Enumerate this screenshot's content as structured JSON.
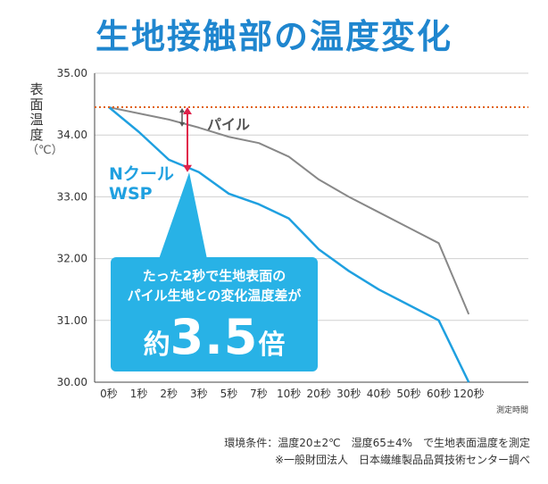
{
  "title": "生地接触部の温度変化",
  "y_axis_label_chars": [
    "表",
    "面",
    "温",
    "度"
  ],
  "y_axis_unit": "（℃）",
  "x_axis_note": "測定時間",
  "callout": {
    "line1": "たった2秒で生地表面の",
    "line2": "パイル生地との変化温度差が",
    "prefix": "約",
    "value": "3.5",
    "suffix": "倍"
  },
  "footnote": {
    "line1": "環境条件：温度20±2℃　湿度65±4%　で生地表面温度を測定",
    "line2": "※一般財団法人　日本繊維製品品質技術センター調べ"
  },
  "colors": {
    "title": "#1f86cf",
    "n_cool": "#1fa0e0",
    "pile": "#888888",
    "reference": "#e0621a",
    "arrow": "#e0214a",
    "callout_bg": "#28b2e6"
  },
  "chart_data": {
    "type": "line",
    "categories": [
      "0秒",
      "1秒",
      "2秒",
      "3秒",
      "5秒",
      "7秒",
      "10秒",
      "20秒",
      "30秒",
      "40秒",
      "50秒",
      "60秒",
      "120秒"
    ],
    "y_ticks": [
      "35.00",
      "34.00",
      "33.00",
      "32.00",
      "31.00",
      "30.00"
    ],
    "ylim": [
      30,
      35
    ],
    "grid": true,
    "reference_line": 34.45,
    "series": [
      {
        "name": "パイル",
        "values": [
          34.45,
          34.35,
          34.25,
          34.12,
          33.97,
          33.87,
          33.65,
          33.28,
          33.0,
          32.75,
          32.5,
          32.25,
          31.1
        ]
      },
      {
        "name": "Nクール WSP",
        "name_line1": "Nクール",
        "name_line2": "WSP",
        "values": [
          34.45,
          34.05,
          33.6,
          33.4,
          33.05,
          32.88,
          32.65,
          32.15,
          31.8,
          31.5,
          31.25,
          31.0,
          30.0
        ]
      }
    ]
  }
}
